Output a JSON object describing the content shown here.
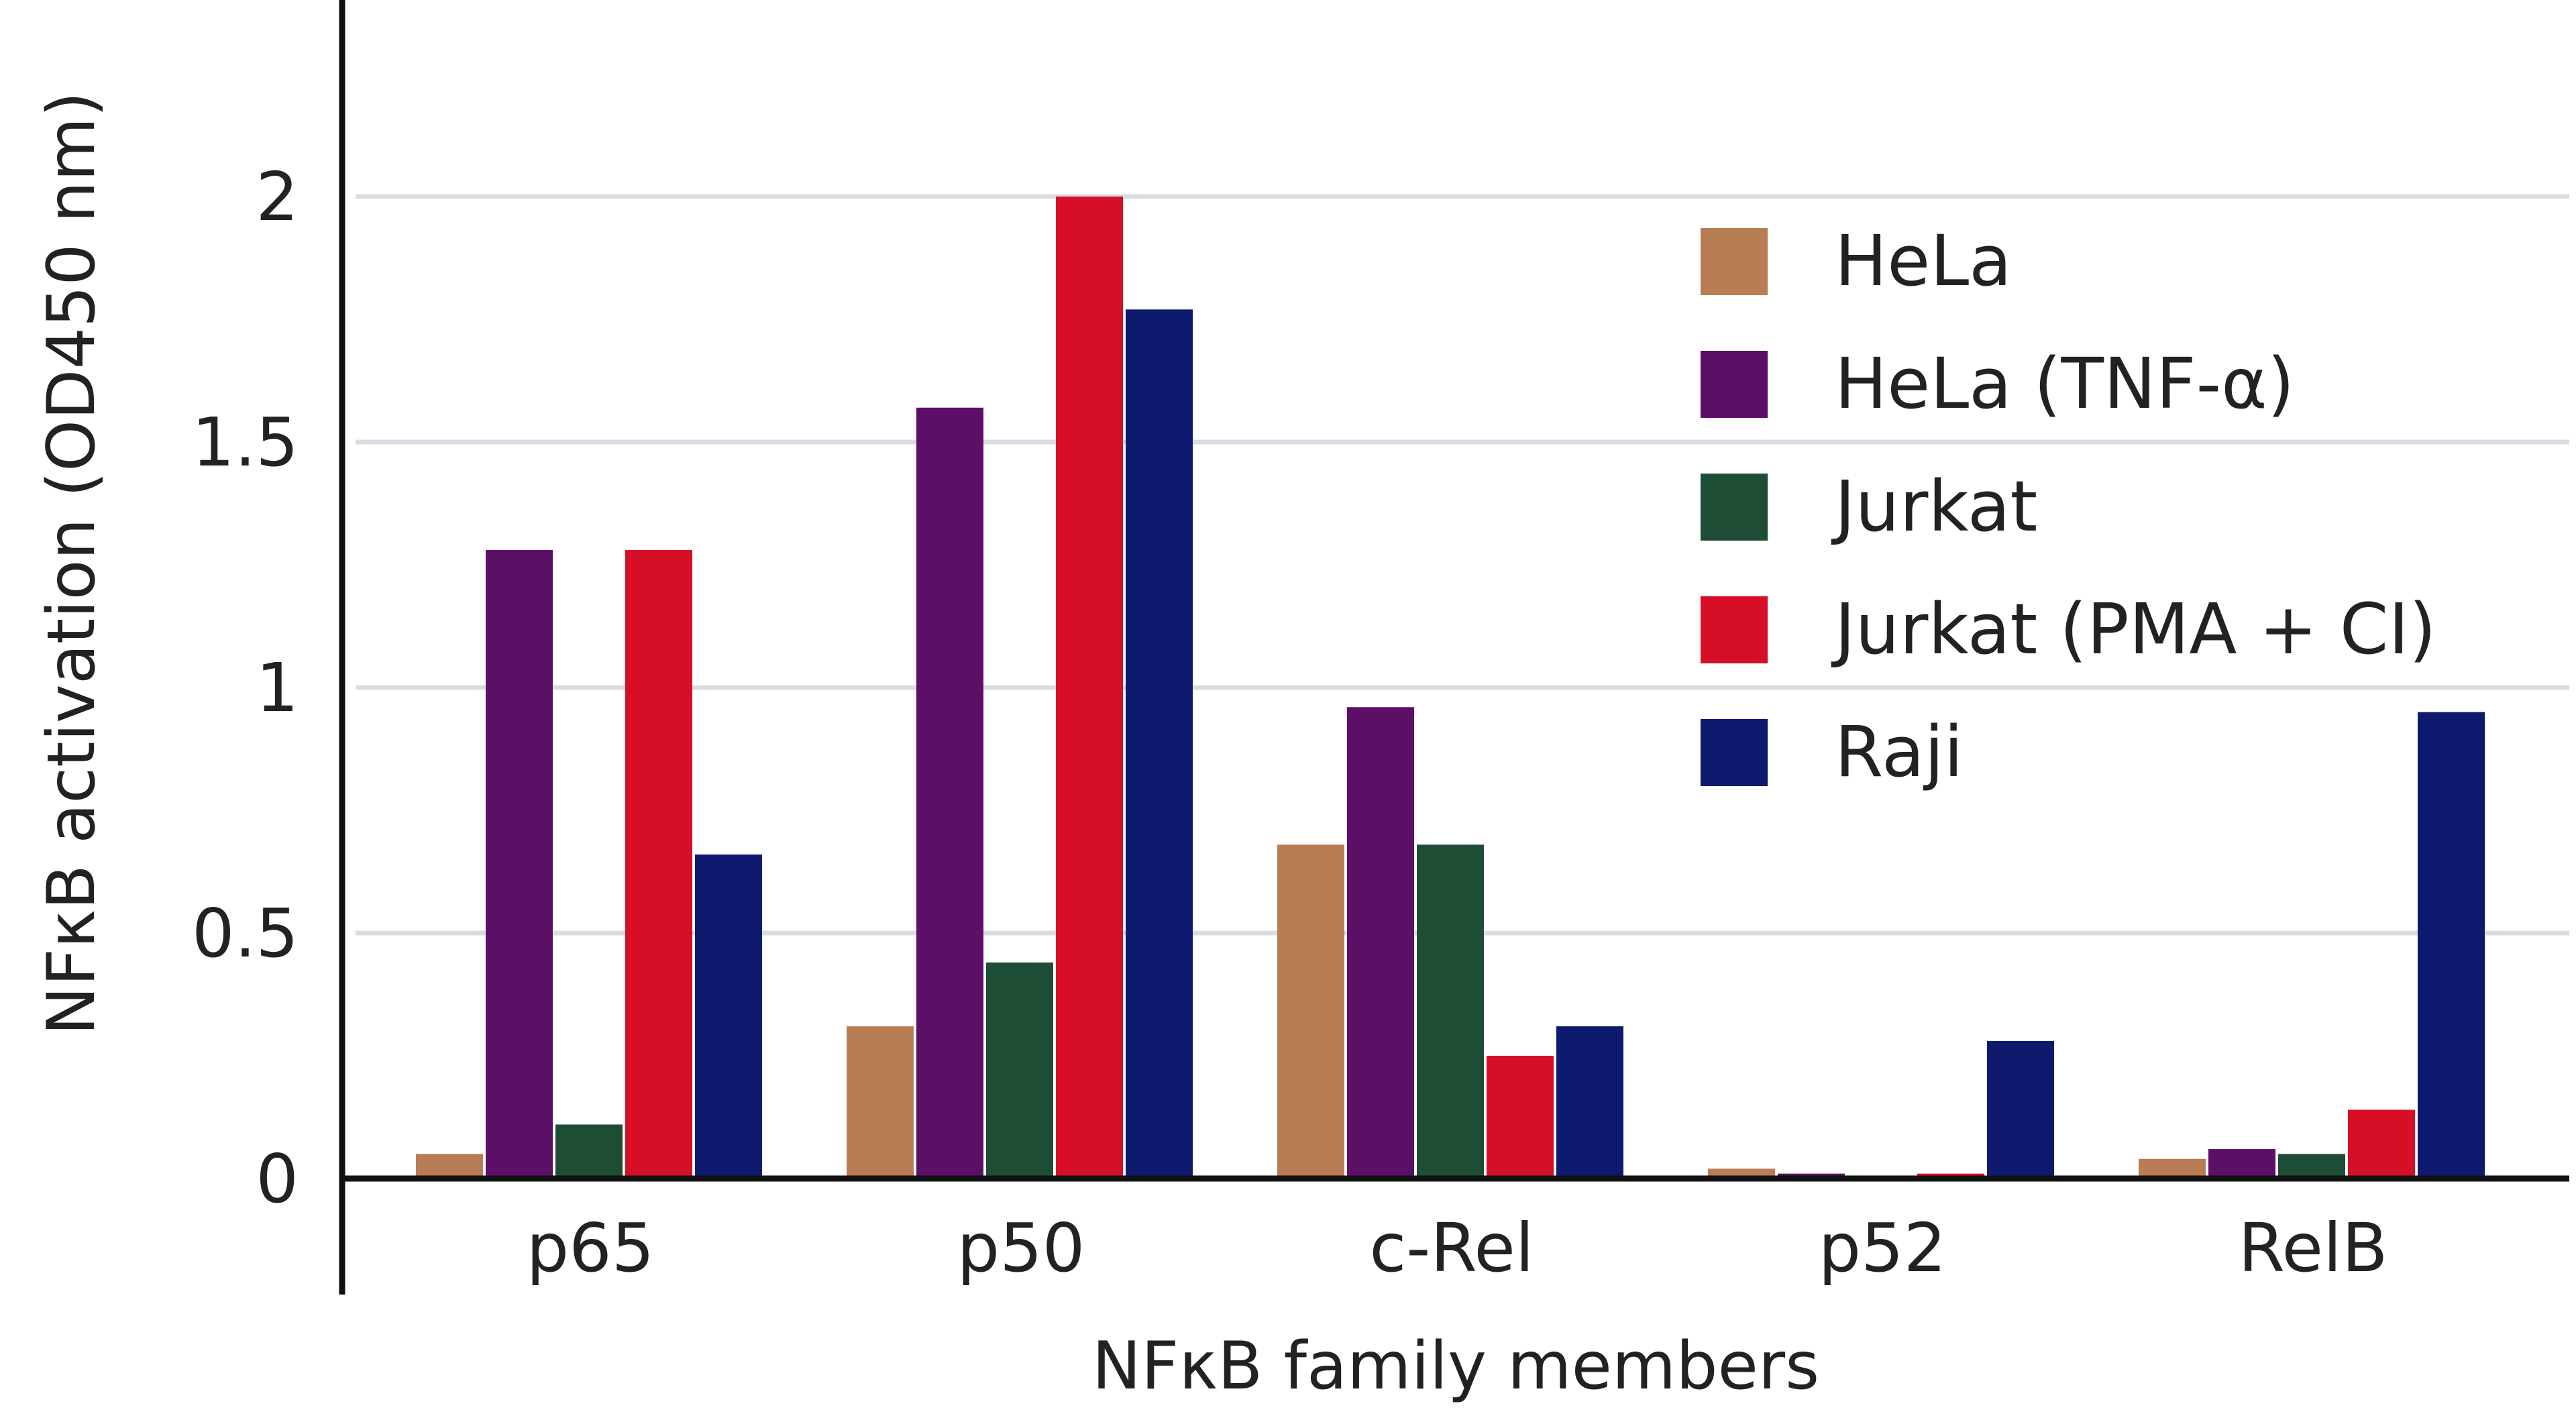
{
  "chart_data": {
    "type": "bar",
    "title": "",
    "xlabel": "NFκB family members",
    "ylabel": "NFκB activation (OD450 nm)",
    "categories": [
      "p65",
      "p50",
      "c-Rel",
      "p52",
      "RelB"
    ],
    "ylim": [
      0,
      2.35
    ],
    "yticks": [
      0,
      0.5,
      1,
      1.5,
      2
    ],
    "ytick_labels": [
      "0",
      "0.5",
      "1",
      "1.5",
      "2"
    ],
    "grid": true,
    "legend_position": "top-right",
    "series": [
      {
        "name": "HeLa",
        "color": "#b87d55",
        "values": [
          0.05,
          0.31,
          0.68,
          0.02,
          0.04
        ]
      },
      {
        "name": "HeLa (TNF-α)",
        "color": "#5c0f66",
        "values": [
          1.28,
          1.57,
          0.96,
          0.01,
          0.06
        ]
      },
      {
        "name": "Jurkat",
        "color": "#1e4d36",
        "values": [
          0.11,
          0.44,
          0.68,
          0.0,
          0.05
        ]
      },
      {
        "name": "Jurkat (PMA + CI)",
        "color": "#d60f26",
        "values": [
          1.28,
          2.0,
          0.25,
          0.01,
          0.14
        ]
      },
      {
        "name": "Raji",
        "color": "#0e1a6e",
        "values": [
          0.66,
          1.77,
          0.31,
          0.28,
          0.95
        ]
      }
    ]
  }
}
